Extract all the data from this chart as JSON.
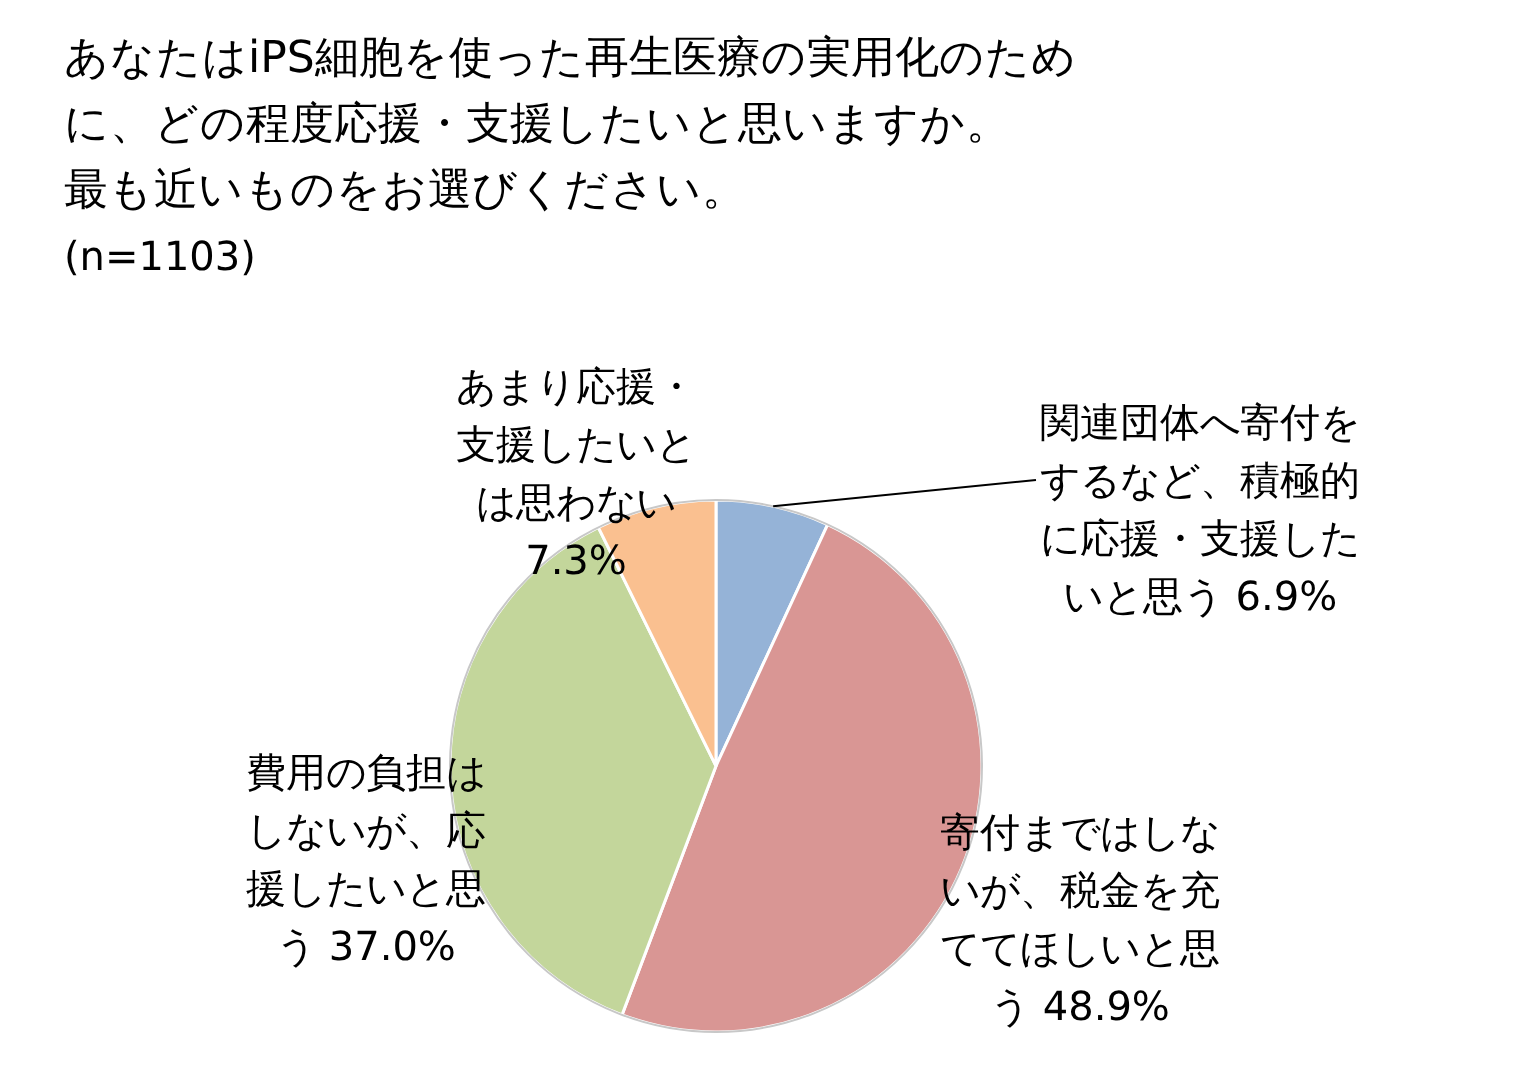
{
  "chart_data": {
    "type": "pie",
    "title": "あなたはiPS細胞を使った再生医療の実用化のために、どの程度応援・支援したいと思いますか。最も近いものをお選びください。",
    "subtitle": "(n=1103)",
    "categories": [
      "関連団体へ寄付をするなど、積極的に応援・支援したいと思う",
      "寄付まではしないが、税金を充ててほしいと思う",
      "費用の負担はしないが、応援したいと思う",
      "あまり応援・支援したいとは思わない"
    ],
    "values": [
      6.9,
      48.9,
      37.0,
      7.3
    ],
    "colors": [
      "#95b3d7",
      "#d99694",
      "#c3d69b",
      "#fac090"
    ],
    "value_labels": [
      "6.9%",
      "48.9%",
      "37.0%",
      "7.3%"
    ]
  }
}
